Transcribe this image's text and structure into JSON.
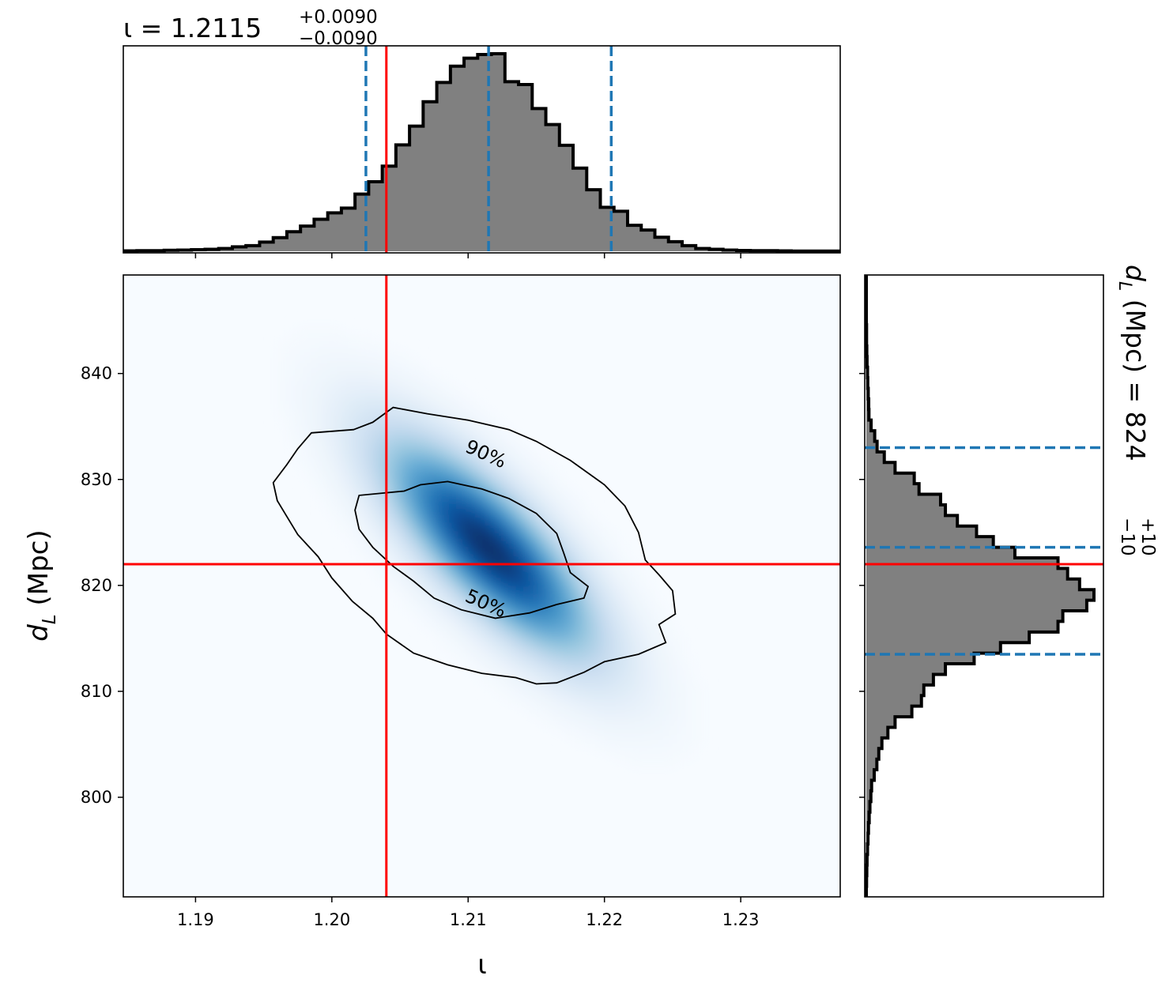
{
  "chart_data": {
    "type": "corner",
    "colors": {
      "hist_fill": "#808080",
      "hist_edge": "#000000",
      "quantile_line": "#1f77b4",
      "truth_line": "#ff0000",
      "density_cmap": "Blues"
    },
    "joint": {
      "type": "heatmap",
      "xlabel": "ι",
      "ylabel_main": "d",
      "ylabel_sub": "L",
      "ylabel_unit": " (Mpc)",
      "xlim": [
        1.1847,
        1.2373
      ],
      "ylim": [
        790.6,
        849.3
      ],
      "xticks": [
        1.19,
        1.2,
        1.21,
        1.22,
        1.23
      ],
      "xtick_labels": [
        "1.19",
        "1.20",
        "1.21",
        "1.22",
        "1.23"
      ],
      "yticks": [
        800,
        810,
        820,
        830,
        840
      ],
      "ytick_labels": [
        "800",
        "810",
        "820",
        "830",
        "840"
      ],
      "peak": {
        "x": 1.2115,
        "y": 823.6
      },
      "contour_labels": [
        "90%",
        "50%"
      ],
      "contours": [
        {
          "level": "90%",
          "points": [
            [
              1.2016,
              834.7
            ],
            [
              1.203,
              835.4
            ],
            [
              1.2045,
              836.8
            ],
            [
              1.207,
              836.2
            ],
            [
              1.21,
              835.6
            ],
            [
              1.213,
              834.7
            ],
            [
              1.215,
              833.6
            ],
            [
              1.2175,
              831.8
            ],
            [
              1.22,
              829.5
            ],
            [
              1.2215,
              827.5
            ],
            [
              1.2225,
              825.0
            ],
            [
              1.223,
              822.4
            ],
            [
              1.224,
              821.0
            ],
            [
              1.225,
              819.5
            ],
            [
              1.2252,
              817.3
            ],
            [
              1.224,
              816.3
            ],
            [
              1.2245,
              814.6
            ],
            [
              1.2225,
              813.5
            ],
            [
              1.22,
              812.8
            ],
            [
              1.2185,
              811.8
            ],
            [
              1.2165,
              810.8
            ],
            [
              1.215,
              810.7
            ],
            [
              1.2135,
              811.3
            ],
            [
              1.211,
              811.7
            ],
            [
              1.2085,
              812.5
            ],
            [
              1.206,
              813.6
            ],
            [
              1.204,
              815.4
            ],
            [
              1.203,
              816.9
            ],
            [
              1.2015,
              818.5
            ],
            [
              1.2,
              820.7
            ],
            [
              1.199,
              822.7
            ],
            [
              1.1975,
              824.8
            ],
            [
              1.1967,
              826.5
            ],
            [
              1.196,
              828.0
            ],
            [
              1.1957,
              829.7
            ],
            [
              1.1967,
              831.4
            ],
            [
              1.1975,
              832.9
            ],
            [
              1.1985,
              834.4
            ]
          ]
        },
        {
          "level": "50%",
          "points": [
            [
              1.2053,
              828.9
            ],
            [
              1.2065,
              829.5
            ],
            [
              1.2085,
              829.8
            ],
            [
              1.211,
              829.1
            ],
            [
              1.213,
              828.2
            ],
            [
              1.215,
              826.8
            ],
            [
              1.2165,
              824.9
            ],
            [
              1.217,
              823.1
            ],
            [
              1.2175,
              821.2
            ],
            [
              1.2188,
              819.9
            ],
            [
              1.2185,
              818.8
            ],
            [
              1.2165,
              818.2
            ],
            [
              1.2145,
              817.4
            ],
            [
              1.212,
              816.9
            ],
            [
              1.2095,
              817.7
            ],
            [
              1.2075,
              818.8
            ],
            [
              1.206,
              820.4
            ],
            [
              1.2045,
              821.8
            ],
            [
              1.203,
              823.6
            ],
            [
              1.202,
              825.3
            ],
            [
              1.2017,
              827.1
            ],
            [
              1.202,
              828.5
            ]
          ]
        }
      ]
    },
    "x_marginal": {
      "type": "histogram",
      "title_prefix": "ι = 1.2115",
      "title_sup": "+0.0090",
      "title_sub": "−0.0090",
      "bin_start": 1.1847,
      "bin_width": 0.001,
      "counts": [
        0.2,
        0.3,
        0.3,
        0.5,
        0.6,
        0.8,
        1.0,
        1.4,
        2.2,
        2.8,
        4.6,
        6.8,
        9.8,
        12.6,
        16.0,
        19.2,
        21.6,
        28.6,
        34.8,
        42.6,
        53.2,
        62.6,
        74.8,
        84.4,
        92.6,
        96.6,
        98.4,
        98.8,
        84.8,
        83.4,
        71.4,
        63.4,
        53.0,
        41.6,
        30.8,
        22.0,
        20.0,
        13.0,
        10.6,
        7.0,
        4.8,
        2.8,
        1.4,
        1.0,
        0.6,
        0.4,
        0.3,
        0.3,
        0.2,
        0.1,
        0.1,
        0.1,
        0.1
      ],
      "quantiles": [
        1.2025,
        1.2115,
        1.2205
      ],
      "truth": 1.204,
      "xticks": [
        1.19,
        1.2,
        1.21,
        1.22,
        1.23
      ]
    },
    "y_marginal": {
      "type": "histogram",
      "orientation": "horizontal",
      "title_main": "d",
      "title_sub": "L",
      "title_prefix_rest": " (Mpc) = 824",
      "title_sup": "+10",
      "title_subscript": "−10",
      "bin_start": 790.6,
      "bin_width": 1.0,
      "counts": [
        0.0,
        0.1,
        0.2,
        0.3,
        0.5,
        0.7,
        0.9,
        1.2,
        1.5,
        1.9,
        2.2,
        3.3,
        4.4,
        5.2,
        6.5,
        9.0,
        12.0,
        19.0,
        23.0,
        24.0,
        28.0,
        33.0,
        45.0,
        56.0,
        68.0,
        80.0,
        82.0,
        92.0,
        95.0,
        89.0,
        84.0,
        80.0,
        62.0,
        53.0,
        46.0,
        38.0,
        33.0,
        31.0,
        22.0,
        20.0,
        12.0,
        7.5,
        4.5,
        3.5,
        2.0,
        1.1,
        1.0,
        0.8,
        0.6,
        0.5,
        0.3,
        0.2,
        0.1,
        0.1,
        0.0,
        0.0,
        0.0,
        0.0,
        0.0
      ],
      "quantiles": [
        813.5,
        823.6,
        833.0
      ],
      "truth": 822.0,
      "yticks": [
        800,
        810,
        820,
        830,
        840
      ]
    }
  }
}
